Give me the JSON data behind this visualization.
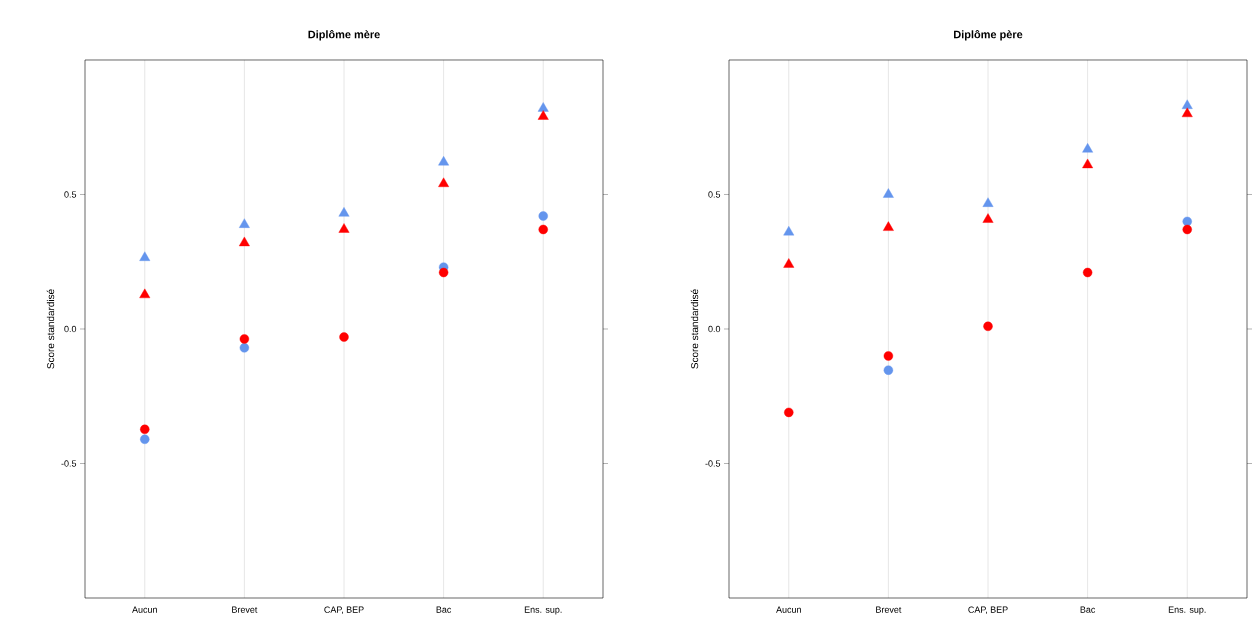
{
  "chart_data": [
    {
      "type": "scatter",
      "title": "Diplôme mère",
      "ylabel": "Score standardisé",
      "categories": [
        "Aucun",
        "Brevet",
        "CAP, BEP",
        "Bac",
        "Ens. sup."
      ],
      "ylim": [
        -1.0,
        1.0
      ],
      "yticks": [
        {
          "value": -0.5,
          "label": "-0.5"
        },
        {
          "value": 0,
          "label": "0.0"
        },
        {
          "value": 0.5,
          "label": "0.5"
        }
      ],
      "grid": "x",
      "series": [
        {
          "color": "#6495ed",
          "marker": "triangle",
          "values": [
            0.265,
            0.388,
            0.43,
            0.62,
            0.82
          ]
        },
        {
          "color": "#ff0000",
          "marker": "triangle",
          "values": [
            0.127,
            0.32,
            0.37,
            0.54,
            0.79
          ]
        },
        {
          "color": "#6495ed",
          "marker": "circle",
          "values": [
            -0.41,
            -0.07,
            null,
            0.23,
            0.42
          ]
        },
        {
          "color": "#ff0000",
          "marker": "circle",
          "values": [
            -0.373,
            -0.037,
            -0.03,
            0.21,
            0.37
          ]
        }
      ]
    },
    {
      "type": "scatter",
      "title": "Diplôme père",
      "ylabel": "Score standardisé",
      "categories": [
        "Aucun",
        "Brevet",
        "CAP, BEP",
        "Bac",
        "Ens. sup."
      ],
      "ylim": [
        -1.0,
        1.0
      ],
      "yticks": [
        {
          "value": -0.5,
          "label": "-0.5"
        },
        {
          "value": 0,
          "label": "0.0"
        },
        {
          "value": 0.5,
          "label": "0.5"
        }
      ],
      "grid": "x",
      "series": [
        {
          "color": "#6495ed",
          "marker": "triangle",
          "values": [
            0.36,
            0.5,
            0.466,
            0.668,
            0.83
          ]
        },
        {
          "color": "#ff0000",
          "marker": "triangle",
          "values": [
            0.24,
            0.377,
            0.407,
            0.61,
            0.8
          ]
        },
        {
          "color": "#6495ed",
          "marker": "circle",
          "values": [
            null,
            -0.153,
            null,
            null,
            0.4
          ]
        },
        {
          "color": "#ff0000",
          "marker": "circle",
          "values": [
            -0.31,
            -0.1,
            0.01,
            0.21,
            0.37
          ]
        }
      ]
    }
  ]
}
